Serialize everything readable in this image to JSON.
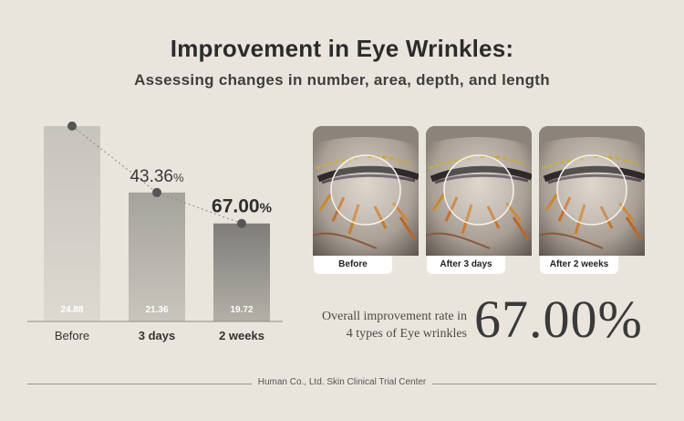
{
  "title": "Improvement in Eye Wrinkles:",
  "subtitle": "Assessing changes in number, area, depth, and length",
  "chart_data": {
    "type": "bar",
    "categories": [
      "Before",
      "3 days",
      "2 weeks"
    ],
    "values": [
      24.88,
      21.36,
      19.72
    ],
    "value_labels": [
      "24.88",
      "21.36",
      "19.72"
    ],
    "improvement_labels": [
      "",
      "43.36%",
      "67.00%"
    ],
    "connecting_line": "dotted",
    "grid": false
  },
  "photos": [
    {
      "label": "Before"
    },
    {
      "label": "After 3 days"
    },
    {
      "label": "After 2 weeks"
    }
  ],
  "overall": {
    "line1": "Overall improvement rate in",
    "line2": "4 types of Eye wrinkles",
    "value": "67.00%"
  },
  "footer": "Human Co., Ltd. Skin Clinical Trial Center",
  "colors": {
    "background": "#e9e5dc",
    "bar_before": "#c6c4bd",
    "bar_3days": "#a5a39d",
    "bar_2weeks": "#7e7d79",
    "marker": "#555555"
  }
}
